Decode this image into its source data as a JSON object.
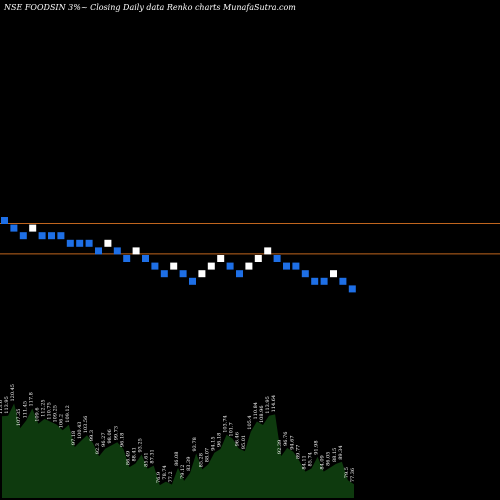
{
  "chart_data": {
    "type": "renko",
    "title": "NSE FOODSIN  3%~  Closing Daily data  Renko  charts MunafaSutra.com",
    "background": "#000000",
    "box_colors": {
      "up": "#ffffff",
      "down": "#1e6fe6"
    },
    "reference_line_color": "#c0651e",
    "volume_area_color": "#0e3a0e",
    "grid": false,
    "bricks": [
      {
        "dir": "down",
        "row": 0
      },
      {
        "dir": "down",
        "row": 1
      },
      {
        "dir": "down",
        "row": 2
      },
      {
        "dir": "up",
        "row": 1
      },
      {
        "dir": "down",
        "row": 2
      },
      {
        "dir": "down",
        "row": 2
      },
      {
        "dir": "down",
        "row": 2
      },
      {
        "dir": "down",
        "row": 3
      },
      {
        "dir": "down",
        "row": 3
      },
      {
        "dir": "down",
        "row": 3
      },
      {
        "dir": "down",
        "row": 4
      },
      {
        "dir": "up",
        "row": 3
      },
      {
        "dir": "down",
        "row": 4
      },
      {
        "dir": "down",
        "row": 5
      },
      {
        "dir": "up",
        "row": 4
      },
      {
        "dir": "down",
        "row": 5
      },
      {
        "dir": "down",
        "row": 6
      },
      {
        "dir": "down",
        "row": 7
      },
      {
        "dir": "up",
        "row": 6
      },
      {
        "dir": "down",
        "row": 7
      },
      {
        "dir": "down",
        "row": 8
      },
      {
        "dir": "up",
        "row": 7
      },
      {
        "dir": "up",
        "row": 6
      },
      {
        "dir": "up",
        "row": 5
      },
      {
        "dir": "down",
        "row": 6
      },
      {
        "dir": "down",
        "row": 7
      },
      {
        "dir": "up",
        "row": 6
      },
      {
        "dir": "up",
        "row": 5
      },
      {
        "dir": "up",
        "row": 4
      },
      {
        "dir": "down",
        "row": 5
      },
      {
        "dir": "down",
        "row": 6
      },
      {
        "dir": "down",
        "row": 6
      },
      {
        "dir": "down",
        "row": 7
      },
      {
        "dir": "down",
        "row": 8
      },
      {
        "dir": "down",
        "row": 8
      },
      {
        "dir": "up",
        "row": 7
      },
      {
        "dir": "down",
        "row": 8
      },
      {
        "dir": "down",
        "row": 9
      }
    ],
    "reference_lines": [
      0.4,
      4.4
    ],
    "volume_labels": [
      "113.6",
      "113.95",
      "120.45",
      "107.35",
      "111.45",
      "117.8",
      "109.6",
      "112.25",
      "110.75",
      "109.25",
      "106.2",
      "109.12",
      "97.18",
      "100.43",
      "103.56",
      "99.3",
      "92.3",
      "96.27",
      "98.06",
      "99.73",
      "96.18",
      "86.49",
      "88.41",
      "93.25",
      "85.61",
      "87.31",
      "76.9",
      "78.74",
      "77.2",
      "86.08",
      "79.12",
      "83.39",
      "93.78",
      "85.28",
      "88.07",
      "94.15",
      "96.18",
      "103.74",
      "101.7",
      "96.46",
      "95.01",
      "105.4",
      "110.84",
      "108.96",
      "113.95",
      "114.64",
      "92.39",
      "96.76",
      "94.67",
      "89.77",
      "84.11",
      "85.74",
      "91.98",
      "84.09",
      "86.05",
      "88.15",
      "89.34",
      "79.5",
      "77.36"
    ]
  }
}
